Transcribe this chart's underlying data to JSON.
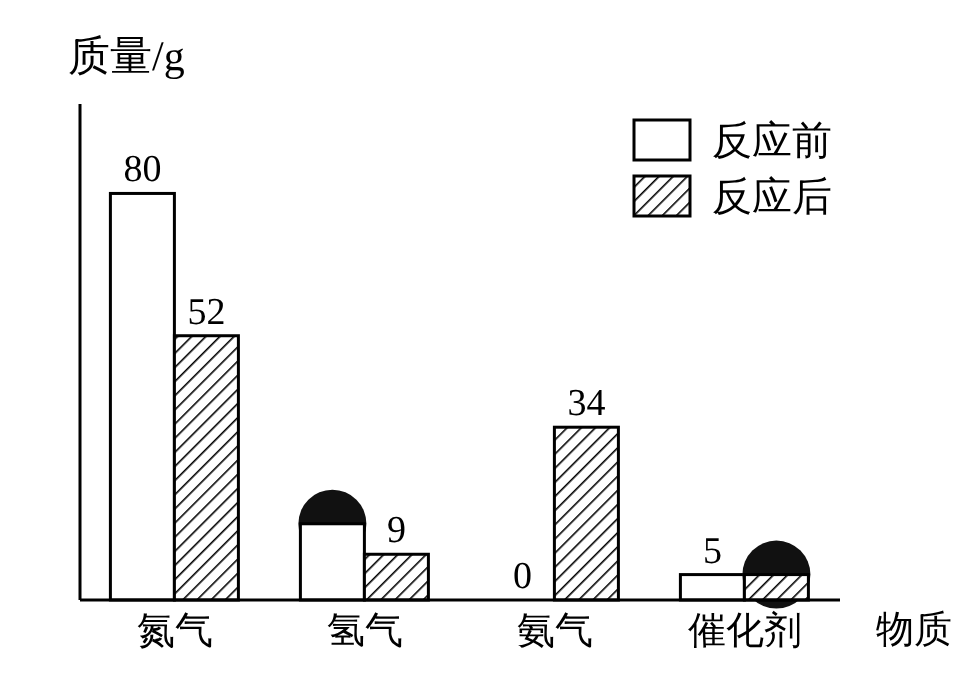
{
  "chart_data": {
    "type": "bar",
    "ylabel": "质量/g",
    "xlabel": "物质",
    "categories": [
      "氮气",
      "氢气",
      "氨气",
      "催化剂"
    ],
    "series": [
      {
        "name": "反应前",
        "color": "#ffffff",
        "values": [
          80,
          15,
          0,
          5
        ],
        "value_labels": [
          "80",
          null,
          "0",
          "5"
        ]
      },
      {
        "name": "反应后",
        "color": "#000000",
        "values": [
          52,
          9,
          34,
          5
        ],
        "value_labels": [
          "52",
          "9",
          "34",
          null
        ]
      }
    ],
    "legend": "top right"
  }
}
